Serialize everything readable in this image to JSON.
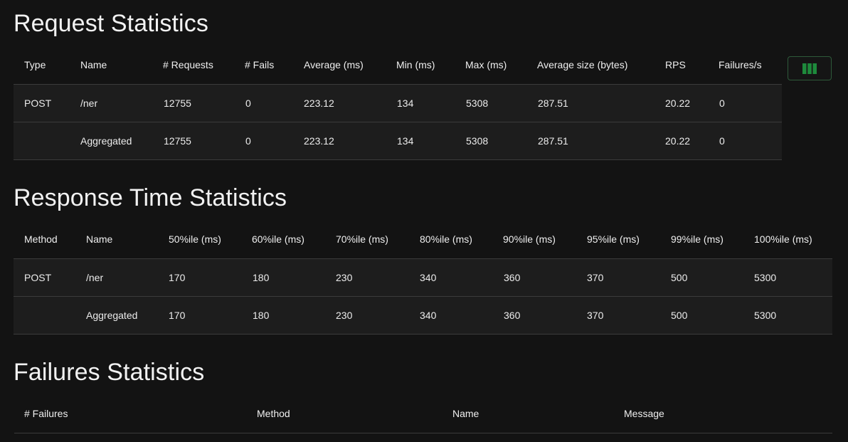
{
  "request_statistics": {
    "title": "Request Statistics",
    "columns": [
      "Type",
      "Name",
      "# Requests",
      "# Fails",
      "Average (ms)",
      "Min (ms)",
      "Max (ms)",
      "Average size (bytes)",
      "RPS",
      "Failures/s"
    ],
    "rows": [
      [
        "POST",
        "/ner",
        "12755",
        "0",
        "223.12",
        "134",
        "5308",
        "287.51",
        "20.22",
        "0"
      ],
      [
        "",
        "Aggregated",
        "12755",
        "0",
        "223.12",
        "134",
        "5308",
        "287.51",
        "20.22",
        "0"
      ]
    ],
    "column_toggle_icon": "columns-icon",
    "accent_color": "#1e8a3c"
  },
  "response_time_statistics": {
    "title": "Response Time Statistics",
    "columns": [
      "Method",
      "Name",
      "50%ile (ms)",
      "60%ile (ms)",
      "70%ile (ms)",
      "80%ile (ms)",
      "90%ile (ms)",
      "95%ile (ms)",
      "99%ile (ms)",
      "100%ile (ms)"
    ],
    "rows": [
      [
        "POST",
        "/ner",
        "170",
        "180",
        "230",
        "340",
        "360",
        "370",
        "500",
        "5300"
      ],
      [
        "",
        "Aggregated",
        "170",
        "180",
        "230",
        "340",
        "360",
        "370",
        "500",
        "5300"
      ]
    ]
  },
  "failures_statistics": {
    "title": "Failures Statistics",
    "columns": [
      "# Failures",
      "Method",
      "Name",
      "Message"
    ],
    "rows": []
  }
}
